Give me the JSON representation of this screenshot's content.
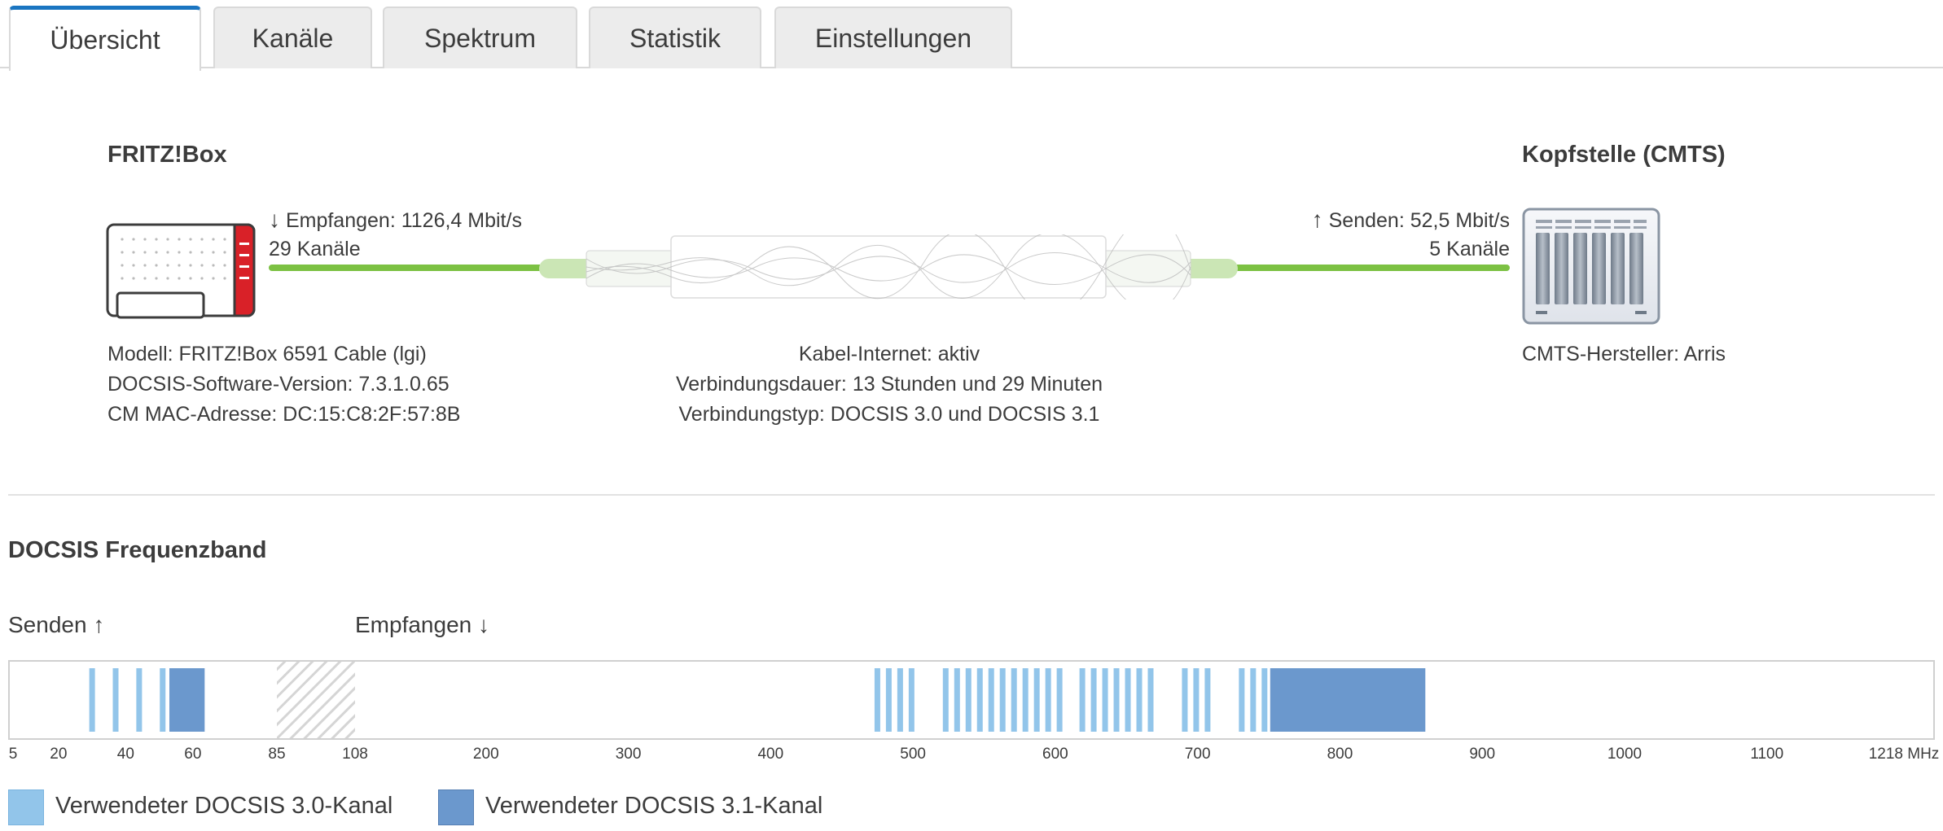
{
  "tabs": [
    {
      "label": "Übersicht",
      "active": true
    },
    {
      "label": "Kanäle",
      "active": false
    },
    {
      "label": "Spektrum",
      "active": false
    },
    {
      "label": "Statistik",
      "active": false
    },
    {
      "label": "Einstellungen",
      "active": false
    }
  ],
  "overview": {
    "device_title": "FRITZ!Box",
    "cmts_title": "Kopfstelle (CMTS)",
    "receive_label": "Empfangen: 1126,4 Mbit/s",
    "receive_channels": "29 Kanäle",
    "send_label": "Senden: 52,5 Mbit/s",
    "send_channels": "5 Kanäle",
    "model": "Modell: FRITZ!Box 6591 Cable (lgi)",
    "docsis_sw": "DOCSIS-Software-Version: 7.3.1.0.65",
    "cm_mac": "CM MAC-Adresse: DC:15:C8:2F:57:8B",
    "cable_status": "Kabel-Internet: aktiv",
    "duration": "Verbindungsdauer: 13 Stunden und 29 Minuten",
    "conn_type": "Verbindungstyp: DOCSIS 3.0 und DOCSIS 3.1",
    "cmts_vendor": "CMTS-Hersteller: Arris",
    "arrow_down_icon": "arrow-down",
    "arrow_up_icon": "arrow-up"
  },
  "band": {
    "title": "DOCSIS Frequenzband",
    "send_label": "Senden",
    "receive_label": "Empfangen",
    "unit": "MHz",
    "upstream_ticks": [
      5,
      20,
      40,
      60,
      85
    ],
    "downstream_ticks": [
      108,
      200,
      300,
      400,
      500,
      600,
      700,
      800,
      900,
      1000,
      1100,
      1218
    ],
    "upstream_range": [
      5,
      85
    ],
    "gap_range": [
      85,
      108
    ],
    "downstream_range": [
      108,
      1218
    ],
    "colors": {
      "docsis30": "#92c5ea",
      "docsis31": "#6b98cd",
      "green": "#7cc143",
      "border": "#d0d0d0"
    },
    "upstream_30_channels": [
      30,
      37,
      44,
      51
    ],
    "upstream_31_channels": [
      [
        53,
        63.5
      ]
    ],
    "downstream_30_channels": [
      475,
      483,
      491,
      499,
      523,
      531,
      539,
      547,
      555,
      563,
      571,
      579,
      587,
      595,
      603,
      619,
      627,
      635,
      643,
      651,
      659,
      667,
      691,
      699,
      707,
      731,
      739,
      747
    ],
    "downstream_31_channels": [
      [
        751,
        860
      ]
    ],
    "legend": [
      {
        "label": "Verwendeter DOCSIS 3.0-Kanal",
        "color": "#92c5ea"
      },
      {
        "label": "Verwendeter DOCSIS 3.1-Kanal",
        "color": "#6b98cd"
      }
    ]
  }
}
